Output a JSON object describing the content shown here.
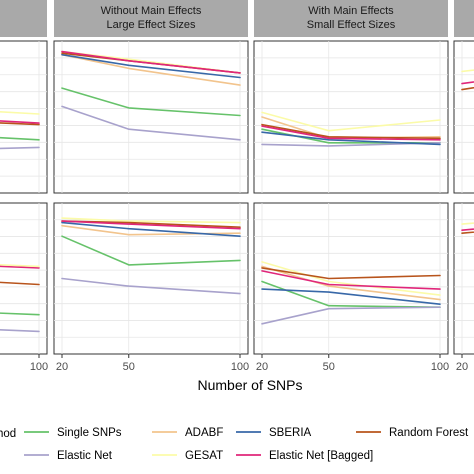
{
  "chart_data": {
    "type": "line",
    "x_axis_title": "Number of SNPs",
    "x_ticks": [
      20,
      50,
      100
    ],
    "x_range": [
      20,
      100
    ],
    "legend_title_fragment": "hod",
    "grid": true,
    "legend_position": "bottom",
    "method_colors": {
      "Single SNPs": "#66c26a",
      "Elastic Net": "#a8a2cc",
      "ADABF": "#f2c48d",
      "GESAT": "#fbfba8",
      "SBERIA": "#3868a8",
      "Elastic Net [Bagged]": "#e0267a",
      "Random Forest": "#b8541c"
    },
    "legend": [
      {
        "name": "Single SNPs",
        "color": "#66c26a"
      },
      {
        "name": "Elastic Net",
        "color": "#a8a2cc"
      },
      {
        "name": "ADABF",
        "color": "#f2c48d"
      },
      {
        "name": "GESAT",
        "color": "#fbfba8"
      },
      {
        "name": "SBERIA",
        "color": "#3868a8"
      },
      {
        "name": "Elastic Net [Bagged]",
        "color": "#e0267a"
      },
      {
        "name": "Random Forest",
        "color": "#b8541c"
      }
    ],
    "panels": [
      {
        "column": 0,
        "row": 0,
        "strip": [
          "",
          ""
        ],
        "ylim": [
          0,
          1
        ],
        "series": [
          {
            "name": "Single SNPs",
            "x": [
              20,
              50,
              100
            ],
            "y": [
              0.44,
              0.39,
              0.35
            ]
          },
          {
            "name": "Elastic Net",
            "x": [
              20,
              50,
              100
            ],
            "y": [
              0.3,
              0.28,
              0.3
            ]
          },
          {
            "name": "GESAT",
            "x": [
              20,
              50,
              100
            ],
            "y": [
              0.6,
              0.56,
              0.52
            ]
          },
          {
            "name": "Random Forest",
            "x": [
              20,
              50,
              100
            ],
            "y": [
              0.52,
              0.48,
              0.45
            ]
          },
          {
            "name": "Elastic Net [Bagged]",
            "x": [
              20,
              50,
              100
            ],
            "y": [
              0.54,
              0.5,
              0.46
            ]
          }
        ]
      },
      {
        "column": 1,
        "row": 0,
        "strip": [
          "Without Main Effects",
          "Large Effect Sizes"
        ],
        "ylim": [
          0,
          1
        ],
        "series": [
          {
            "name": "Single SNPs",
            "x": [
              20,
              50,
              100
            ],
            "y": [
              0.69,
              0.56,
              0.51
            ]
          },
          {
            "name": "Elastic Net",
            "x": [
              20,
              50,
              100
            ],
            "y": [
              0.57,
              0.42,
              0.35
            ]
          },
          {
            "name": "ADABF",
            "x": [
              20,
              50,
              100
            ],
            "y": [
              0.91,
              0.82,
              0.71
            ]
          },
          {
            "name": "GESAT",
            "x": [
              20,
              50,
              100
            ],
            "y": [
              0.93,
              0.88,
              0.79
            ]
          },
          {
            "name": "SBERIA",
            "x": [
              20,
              50,
              100
            ],
            "y": [
              0.91,
              0.84,
              0.76
            ]
          },
          {
            "name": "Random Forest",
            "x": [
              20,
              50,
              100
            ],
            "y": [
              0.92,
              0.87,
              0.79
            ]
          },
          {
            "name": "Elastic Net [Bagged]",
            "x": [
              20,
              50,
              100
            ],
            "y": [
              0.93,
              0.87,
              0.79
            ]
          }
        ]
      },
      {
        "column": 2,
        "row": 0,
        "strip": [
          "With Main Effects",
          "Small Effect Sizes"
        ],
        "ylim": [
          0,
          1
        ],
        "series": [
          {
            "name": "Single SNPs",
            "x": [
              20,
              50,
              100
            ],
            "y": [
              0.42,
              0.33,
              0.33
            ]
          },
          {
            "name": "Elastic Net",
            "x": [
              20,
              50,
              100
            ],
            "y": [
              0.32,
              0.31,
              0.33
            ]
          },
          {
            "name": "ADABF",
            "x": [
              20,
              50,
              100
            ],
            "y": [
              0.5,
              0.36,
              0.37
            ]
          },
          {
            "name": "GESAT",
            "x": [
              20,
              50,
              100
            ],
            "y": [
              0.53,
              0.41,
              0.48
            ]
          },
          {
            "name": "SBERIA",
            "x": [
              20,
              50,
              100
            ],
            "y": [
              0.4,
              0.35,
              0.32
            ]
          },
          {
            "name": "Random Forest",
            "x": [
              20,
              50,
              100
            ],
            "y": [
              0.45,
              0.37,
              0.36
            ]
          },
          {
            "name": "Elastic Net [Bagged]",
            "x": [
              20,
              50,
              100
            ],
            "y": [
              0.44,
              0.36,
              0.35
            ]
          }
        ]
      },
      {
        "column": 3,
        "row": 0,
        "strip": [
          "",
          ""
        ],
        "ylim": [
          0,
          1
        ],
        "series": [
          {
            "name": "GESAT",
            "x": [
              20,
              50,
              100
            ],
            "y": [
              0.8,
              0.85,
              0.9
            ]
          },
          {
            "name": "Elastic Net [Bagged]",
            "x": [
              20,
              50,
              100
            ],
            "y": [
              0.72,
              0.78,
              0.84
            ]
          },
          {
            "name": "Random Forest",
            "x": [
              20,
              50,
              100
            ],
            "y": [
              0.68,
              0.75,
              0.82
            ]
          }
        ]
      },
      {
        "column": 0,
        "row": 1,
        "strip": null,
        "ylim": [
          0,
          1
        ],
        "series": [
          {
            "name": "Single SNPs",
            "x": [
              20,
              50,
              100
            ],
            "y": [
              0.34,
              0.29,
              0.26
            ]
          },
          {
            "name": "Elastic Net",
            "x": [
              20,
              50,
              100
            ],
            "y": [
              0.22,
              0.18,
              0.15
            ]
          },
          {
            "name": "Random Forest",
            "x": [
              20,
              50,
              100
            ],
            "y": [
              0.55,
              0.5,
              0.46
            ]
          },
          {
            "name": "Elastic Net [Bagged]",
            "x": [
              20,
              50,
              100
            ],
            "y": [
              0.62,
              0.6,
              0.57
            ]
          },
          {
            "name": "GESAT",
            "x": [
              20,
              50,
              100
            ],
            "y": [
              0.63,
              0.61,
              0.58
            ]
          }
        ]
      },
      {
        "column": 1,
        "row": 1,
        "strip": null,
        "ylim": [
          0,
          1
        ],
        "series": [
          {
            "name": "Single SNPs",
            "x": [
              20,
              50,
              100
            ],
            "y": [
              0.78,
              0.59,
              0.62
            ]
          },
          {
            "name": "Elastic Net",
            "x": [
              20,
              50,
              100
            ],
            "y": [
              0.5,
              0.45,
              0.4
            ]
          },
          {
            "name": "ADABF",
            "x": [
              20,
              50,
              100
            ],
            "y": [
              0.85,
              0.79,
              0.8
            ]
          },
          {
            "name": "GESAT",
            "x": [
              20,
              50,
              100
            ],
            "y": [
              0.9,
              0.88,
              0.87
            ]
          },
          {
            "name": "SBERIA",
            "x": [
              20,
              50,
              100
            ],
            "y": [
              0.87,
              0.83,
              0.78
            ]
          },
          {
            "name": "Random Forest",
            "x": [
              20,
              50,
              100
            ],
            "y": [
              0.88,
              0.87,
              0.84
            ]
          },
          {
            "name": "Elastic Net [Bagged]",
            "x": [
              20,
              50,
              100
            ],
            "y": [
              0.88,
              0.86,
              0.83
            ]
          }
        ]
      },
      {
        "column": 2,
        "row": 1,
        "strip": null,
        "ylim": [
          0,
          1
        ],
        "series": [
          {
            "name": "Single SNPs",
            "x": [
              20,
              50,
              100
            ],
            "y": [
              0.48,
              0.32,
              0.31
            ]
          },
          {
            "name": "Elastic Net",
            "x": [
              20,
              50,
              100
            ],
            "y": [
              0.2,
              0.3,
              0.31
            ]
          },
          {
            "name": "ADABF",
            "x": [
              20,
              50,
              100
            ],
            "y": [
              0.58,
              0.45,
              0.36
            ]
          },
          {
            "name": "GESAT",
            "x": [
              20,
              50,
              100
            ],
            "y": [
              0.61,
              0.48,
              0.39
            ]
          },
          {
            "name": "SBERIA",
            "x": [
              20,
              50,
              100
            ],
            "y": [
              0.43,
              0.41,
              0.33
            ]
          },
          {
            "name": "Random Forest",
            "x": [
              20,
              50,
              100
            ],
            "y": [
              0.57,
              0.5,
              0.52
            ]
          },
          {
            "name": "Elastic Net [Bagged]",
            "x": [
              20,
              50,
              100
            ],
            "y": [
              0.55,
              0.46,
              0.43
            ]
          }
        ]
      },
      {
        "column": 3,
        "row": 1,
        "strip": null,
        "ylim": [
          0,
          1
        ],
        "series": [
          {
            "name": "GESAT",
            "x": [
              20,
              50,
              100
            ],
            "y": [
              0.86,
              0.9,
              0.93
            ]
          },
          {
            "name": "Elastic Net [Bagged]",
            "x": [
              20,
              50,
              100
            ],
            "y": [
              0.82,
              0.86,
              0.9
            ]
          },
          {
            "name": "Random Forest",
            "x": [
              20,
              50,
              100
            ],
            "y": [
              0.8,
              0.84,
              0.88
            ]
          }
        ]
      }
    ]
  }
}
